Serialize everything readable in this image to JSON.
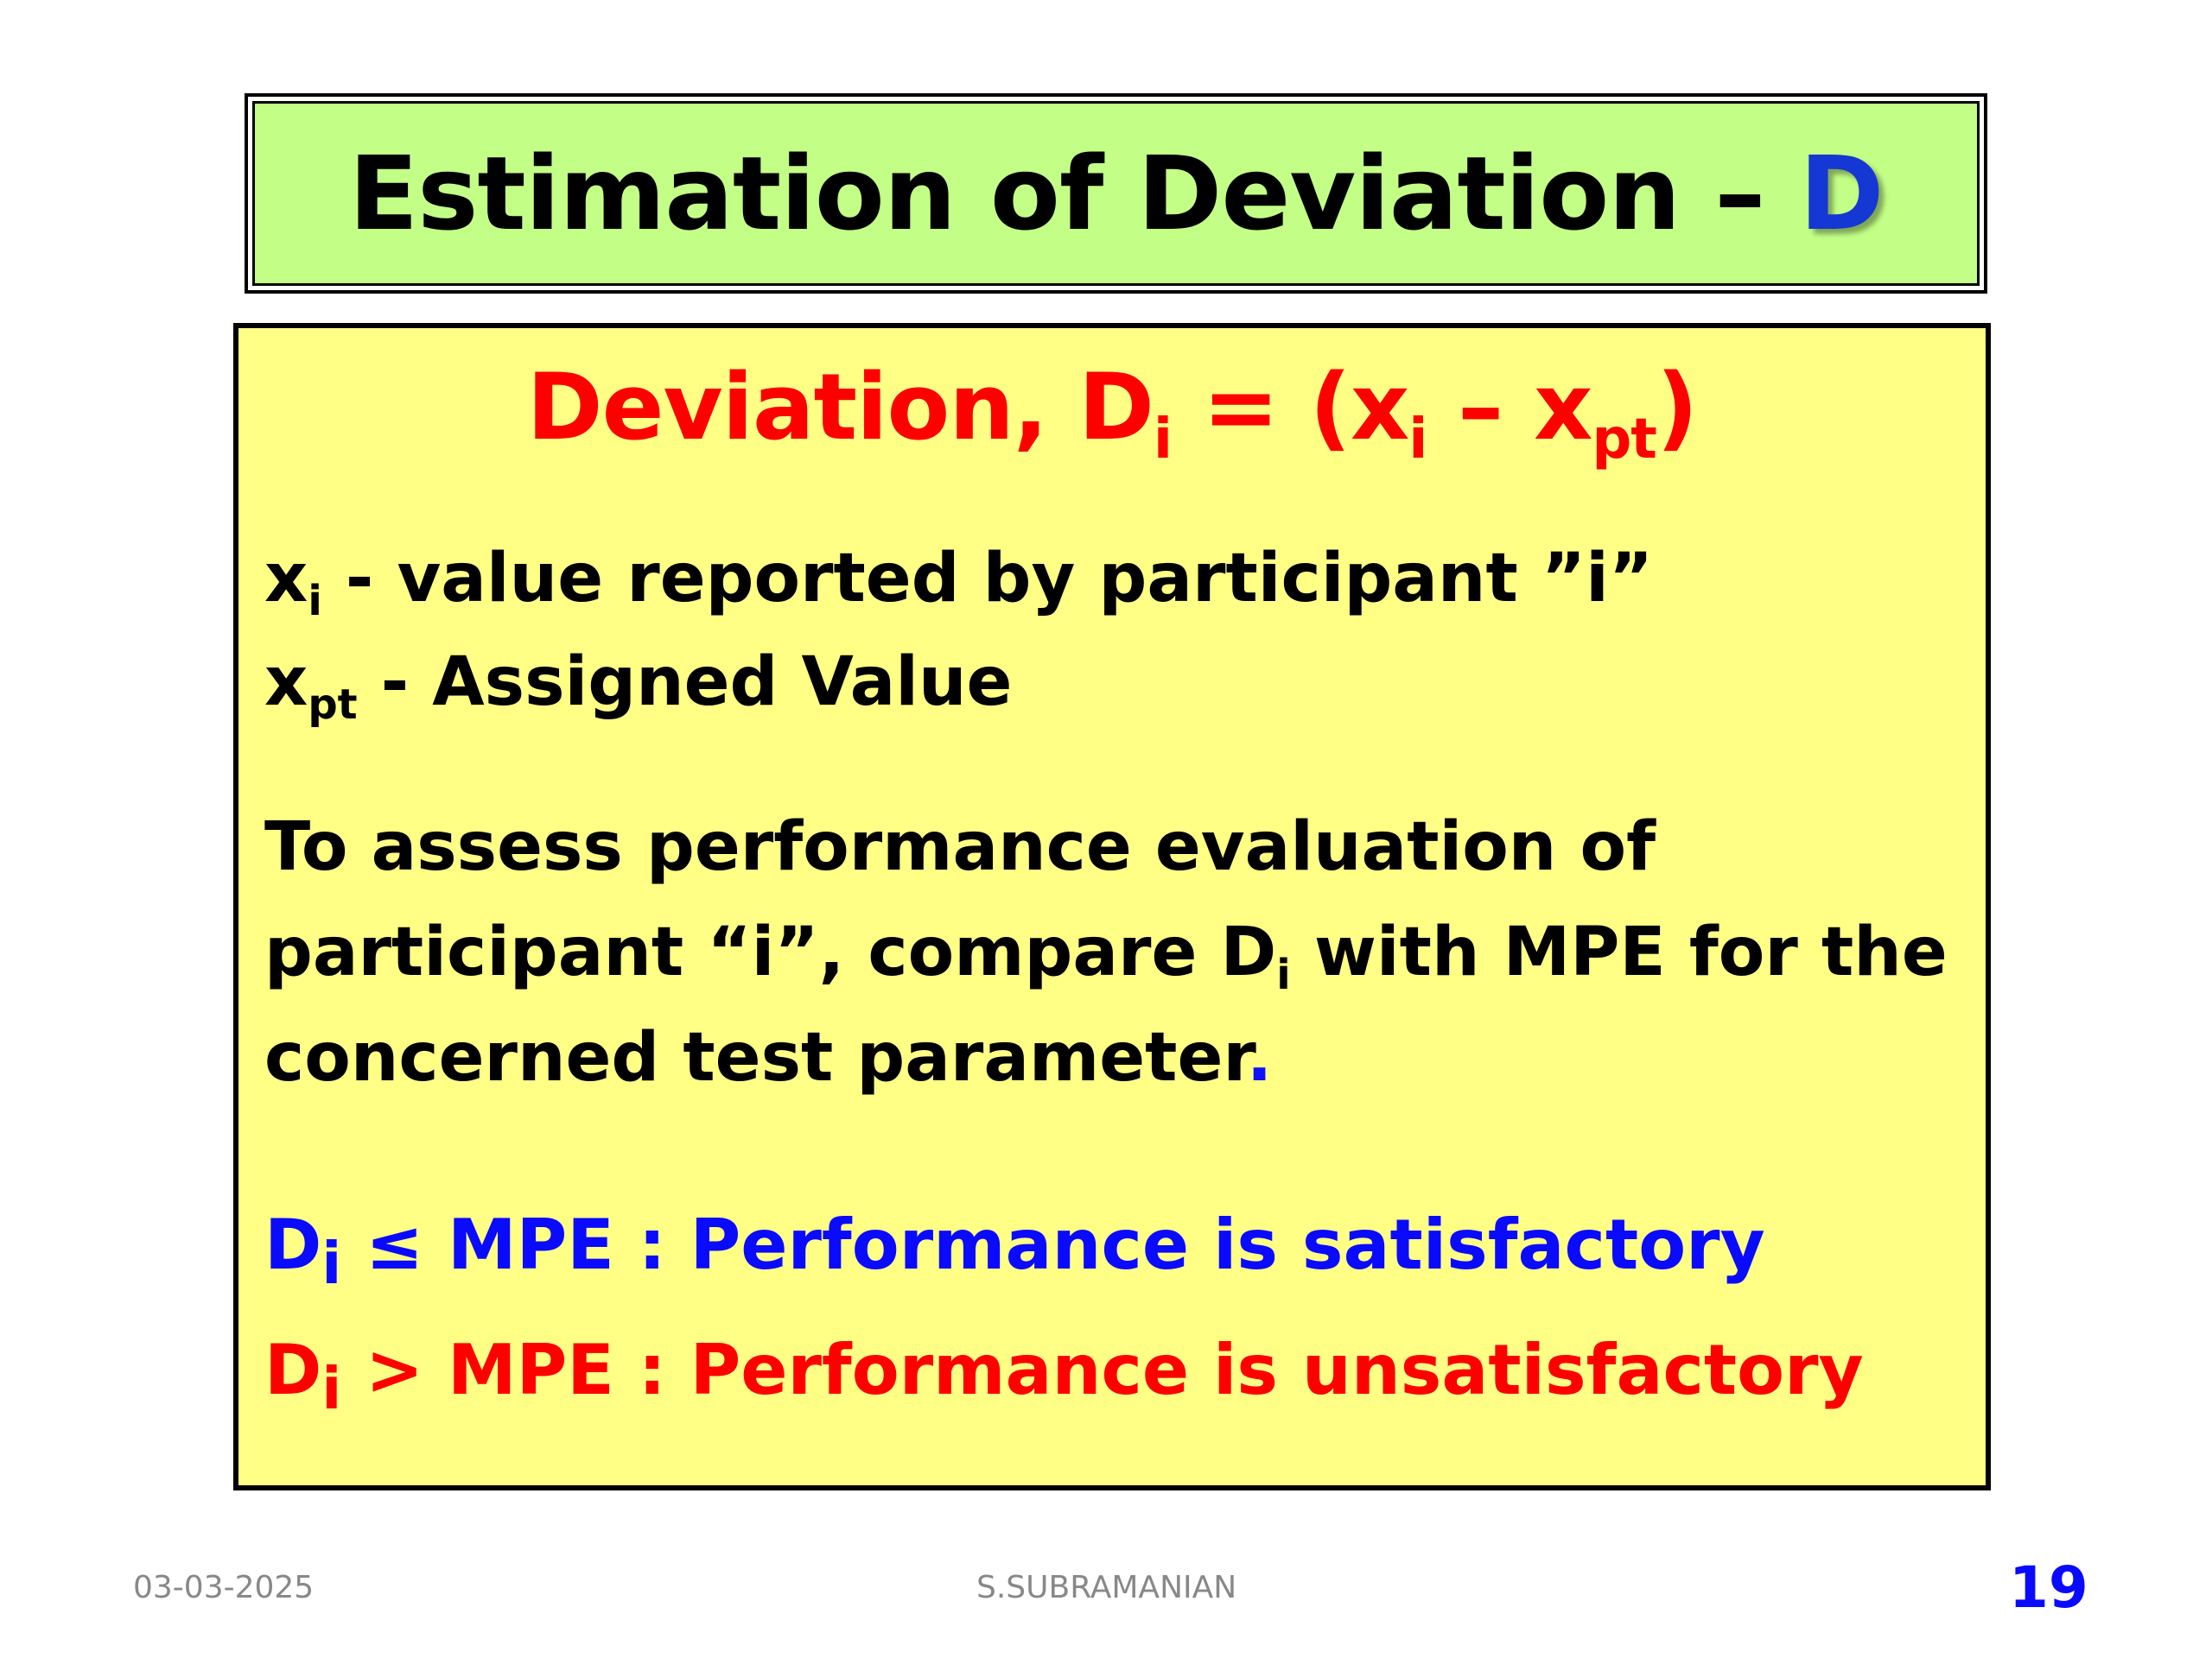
{
  "title": {
    "text": "Estimation of Deviation – ",
    "accent": "D"
  },
  "formula": {
    "lead": "Deviation, D",
    "sub_i": "i",
    "mid": " = (x",
    "sub_i2": "i",
    "dash": " – x",
    "sub_pt": "pt",
    "close": ")"
  },
  "definitions": [
    {
      "symbol": "x",
      "sub": "i",
      "text": "  - value reported by participant  ”i”"
    },
    {
      "symbol": "x",
      "sub": "pt",
      "text": "  - Assigned Value"
    }
  ],
  "paragraph": {
    "line1": "To assess performance evaluation of",
    "line2_a": "participant “i”, compare D",
    "line2_sub": "i",
    "line2_b": " with MPE for the",
    "line3": "concerned test parameter",
    "line3_end": "."
  },
  "rules": [
    {
      "symbol": "D",
      "sub": "i",
      "text": " ≤ MPE :  Performance is satisfactory",
      "color": "#0a0aff"
    },
    {
      "symbol": "D",
      "sub": "i",
      "text": "  > MPE :  Performance is unsatisfactory",
      "color": "#ff0000"
    }
  ],
  "footer": {
    "date": "03-03-2025",
    "author": "S.SUBRAMANIAN",
    "page": "19"
  },
  "colors": {
    "title_bg": "#c3ff86",
    "content_bg": "#ffff86",
    "accent_blue": "#1537d3",
    "red": "#ff0000"
  }
}
